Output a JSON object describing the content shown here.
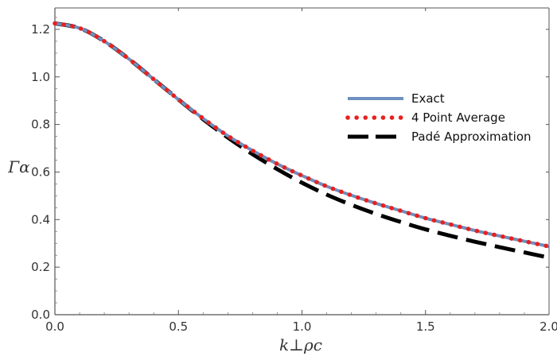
{
  "chart_data": {
    "type": "line",
    "title": "",
    "xlabel": "k⊥ρc",
    "ylabel": "Γα",
    "xlim": [
      0,
      2.0
    ],
    "ylim": [
      0,
      1.29
    ],
    "xticks": [
      0.0,
      0.5,
      1.0,
      1.5,
      2.0
    ],
    "xtick_labels": [
      "0.0",
      "0.5",
      "1.0",
      "1.5",
      "2.0"
    ],
    "yticks": [
      0.0,
      0.2,
      0.4,
      0.6,
      0.8,
      1.0,
      1.2
    ],
    "ytick_labels": [
      "0.0",
      "0.2",
      "0.4",
      "0.6",
      "0.8",
      "1.0",
      "1.2"
    ],
    "grid": false,
    "legend_position": "right",
    "x": [
      0.0,
      0.1,
      0.2,
      0.3,
      0.4,
      0.5,
      0.6,
      0.7,
      0.8,
      0.9,
      1.0,
      1.1,
      1.2,
      1.3,
      1.4,
      1.5,
      1.6,
      1.7,
      1.8,
      1.9,
      2.0
    ],
    "series": [
      {
        "name": "Exact",
        "style": "solid",
        "color": "#6f8fbf",
        "values": [
          1.225,
          1.205,
          1.15,
          1.075,
          0.99,
          0.905,
          0.825,
          0.752,
          0.69,
          0.634,
          0.585,
          0.54,
          0.502,
          0.468,
          0.437,
          0.406,
          0.38,
          0.354,
          0.331,
          0.309,
          0.287
        ]
      },
      {
        "name": "4 Point Average",
        "style": "dotted",
        "color": "#e8201e",
        "values": [
          1.225,
          1.205,
          1.15,
          1.075,
          0.99,
          0.905,
          0.825,
          0.752,
          0.69,
          0.634,
          0.585,
          0.54,
          0.502,
          0.468,
          0.437,
          0.406,
          0.38,
          0.354,
          0.331,
          0.309,
          0.287
        ]
      },
      {
        "name": "Padé Approximation",
        "style": "dashed",
        "color": "#000000",
        "values": [
          1.225,
          1.205,
          1.15,
          1.075,
          0.99,
          0.905,
          0.822,
          0.745,
          0.675,
          0.612,
          0.555,
          0.505,
          0.462,
          0.424,
          0.39,
          0.359,
          0.332,
          0.307,
          0.284,
          0.262,
          0.24
        ]
      }
    ]
  }
}
